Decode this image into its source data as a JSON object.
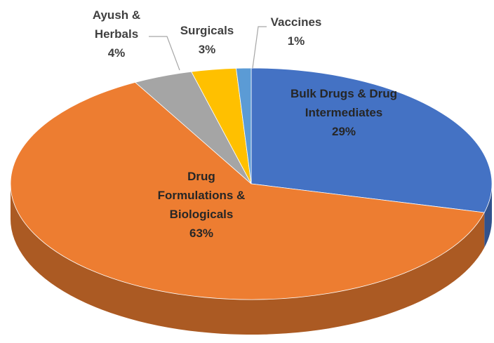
{
  "chart_data": {
    "type": "pie",
    "categories": [
      "Bulk Drugs & Drug Intermediates",
      "Drug Formulations & Biologicals",
      "Ayush & Herbals",
      "Surgicals",
      "Vaccines"
    ],
    "values": [
      29,
      63,
      4,
      3,
      1
    ],
    "value_labels": [
      "29%",
      "63%",
      "4%",
      "3%",
      "1%"
    ],
    "colors": [
      "#4472c4",
      "#ed7d31",
      "#a5a5a5",
      "#ffc000",
      "#5b9bd5"
    ],
    "style": "3d"
  }
}
